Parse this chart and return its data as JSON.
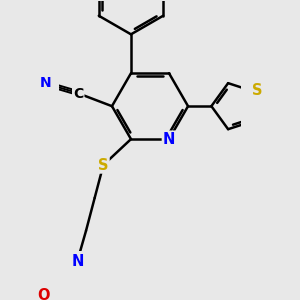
{
  "bg_color": "#e8e8e8",
  "bond_color": "#000000",
  "bond_width": 1.8,
  "atom_colors": {
    "N": "#0000ff",
    "S": "#ccaa00",
    "O": "#dd0000",
    "C": "#000000"
  },
  "font_size_atom": 10.5
}
